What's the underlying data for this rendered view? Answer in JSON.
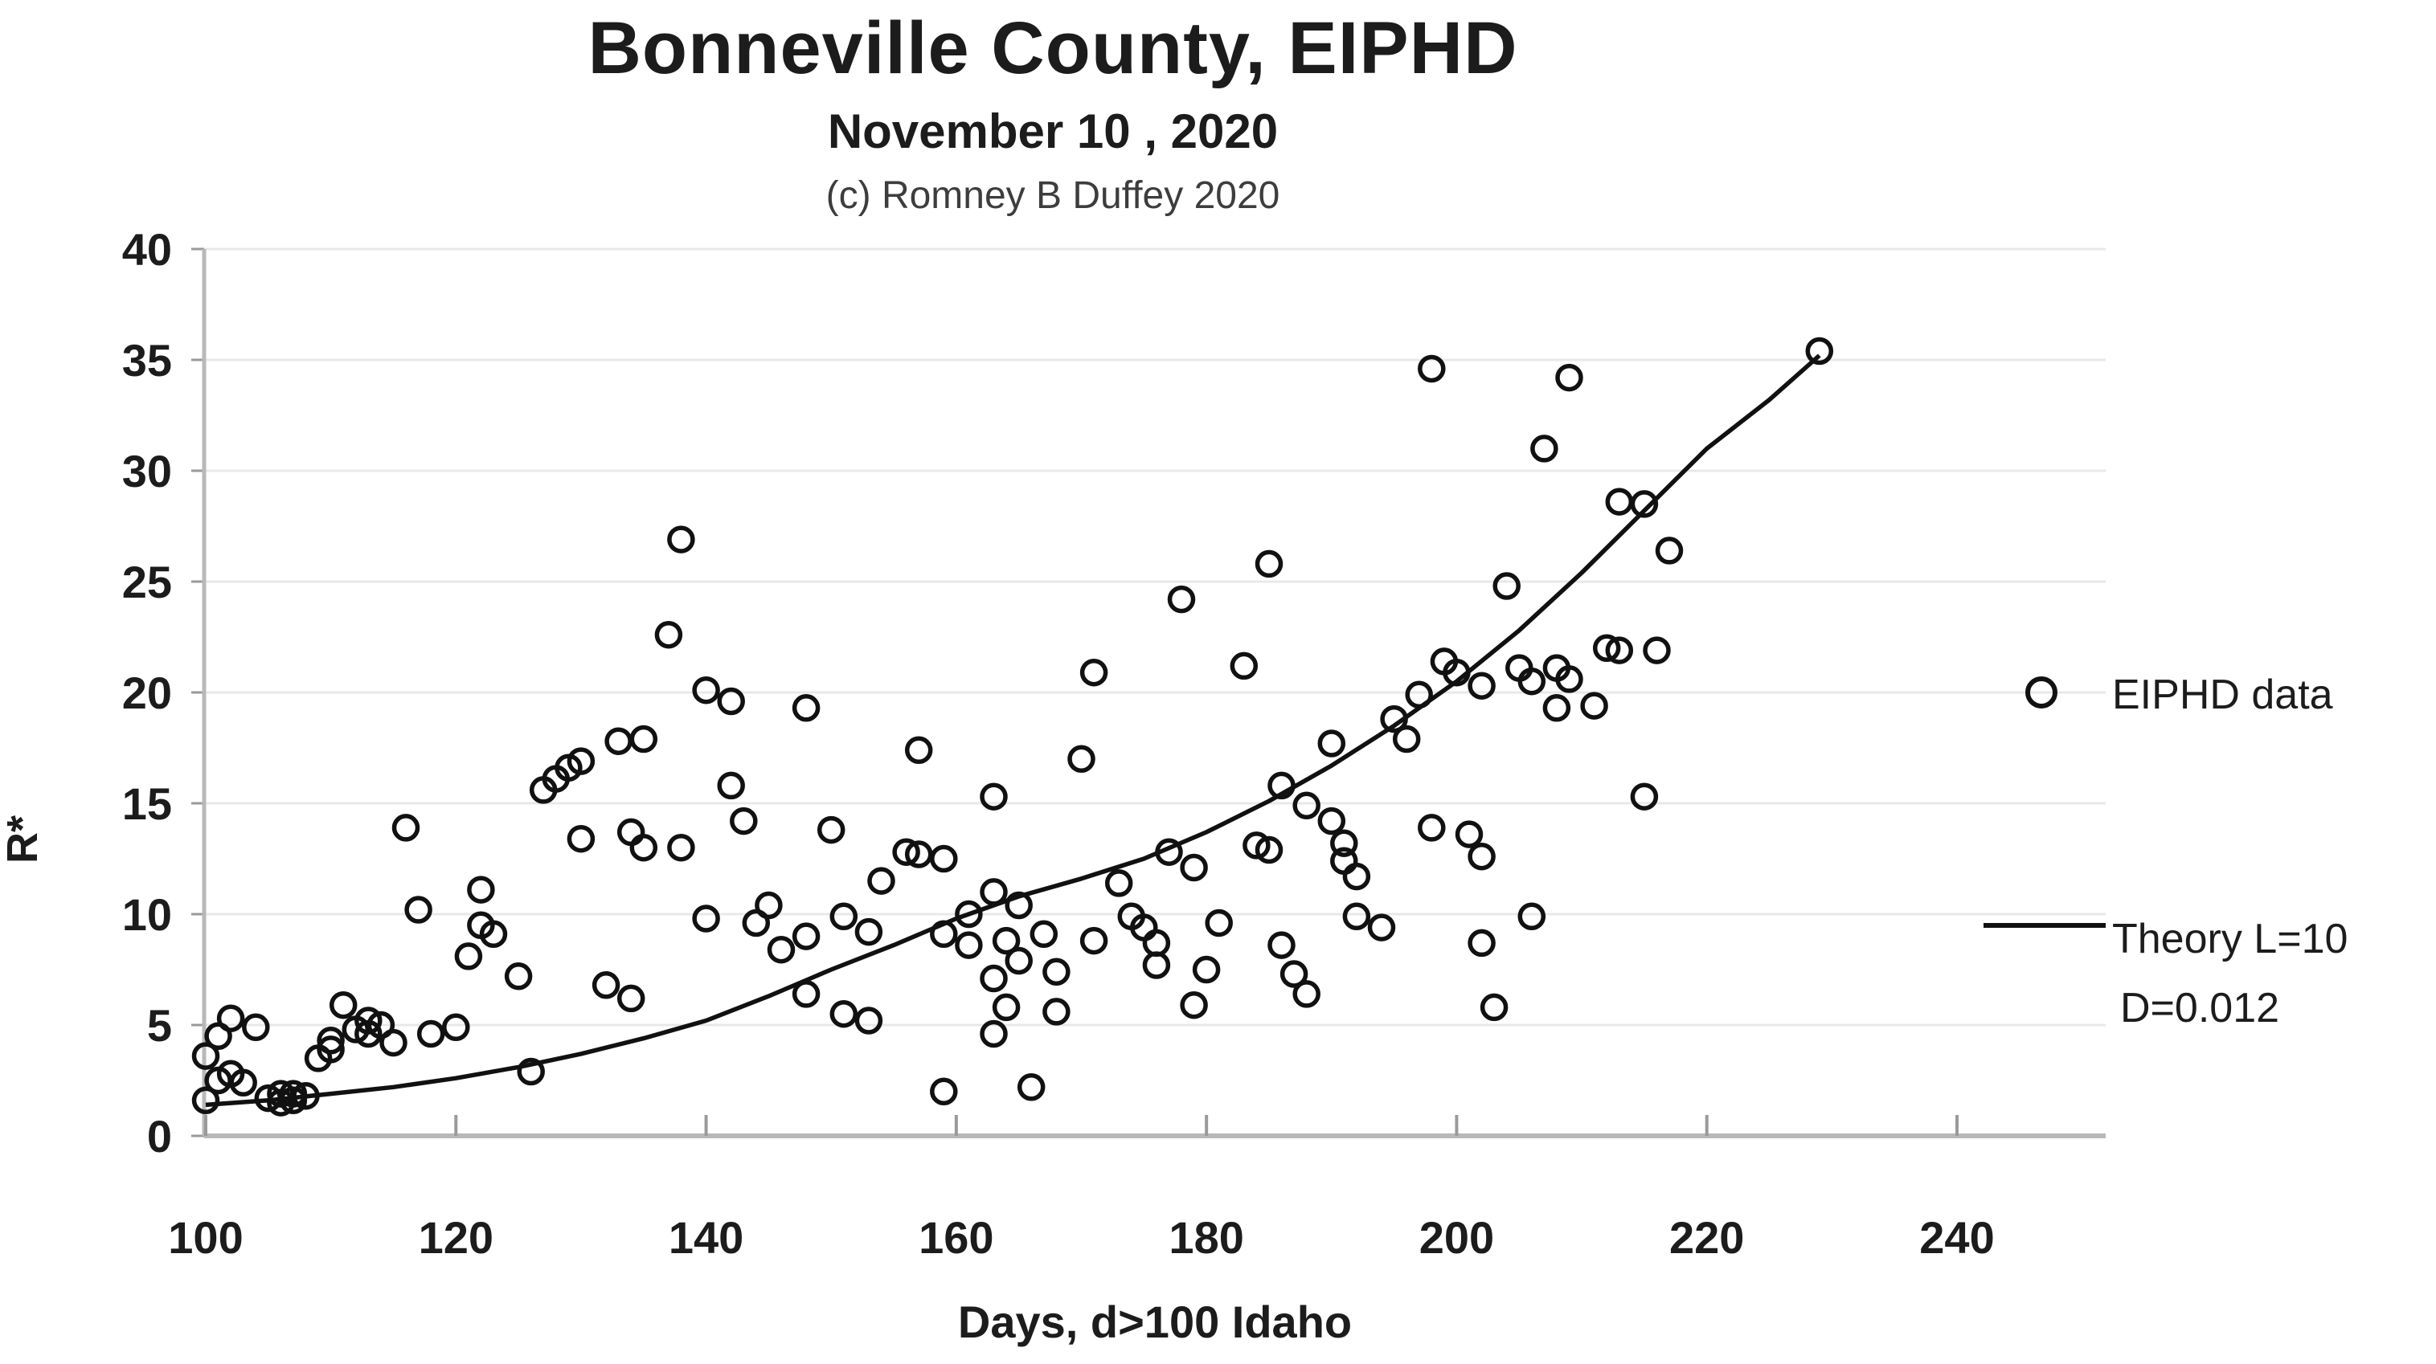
{
  "header": {
    "title": "Bonneville County, EIPHD",
    "subtitle": "November 10 , 2020",
    "copyright": "(c) Romney B Duffey 2020"
  },
  "legend": {
    "scatter_label": "EIPHD data",
    "line_label_line1": "Theory L=10",
    "line_label_line2": "D=0.012"
  },
  "colors": {
    "text": "#1c1c1c",
    "muted_text": "#3d3d3d",
    "gridline": "#e8e8e8",
    "axis": "#b8b8b8",
    "tick": "#9a9a9a",
    "marker": "#111111",
    "theory_line": "#111111"
  },
  "chart_data": {
    "type": "scatter",
    "title": "Bonneville County, EIPHD",
    "xlabel": "Days, d>100 Idaho",
    "ylabel": "R*",
    "xlim": [
      100,
      252
    ],
    "ylim": [
      0,
      40
    ],
    "xticks": [
      100,
      120,
      140,
      160,
      180,
      200,
      220,
      240
    ],
    "yticks": [
      0,
      5,
      10,
      15,
      20,
      25,
      30,
      35,
      40
    ],
    "grid": "horizontal",
    "legend_position": "right",
    "series": [
      {
        "name": "EIPHD data",
        "kind": "scatter",
        "marker": "open-circle",
        "points": [
          [
            100,
            1.6
          ],
          [
            100,
            3.6
          ],
          [
            101,
            2.5
          ],
          [
            101,
            4.5
          ],
          [
            102,
            5.3
          ],
          [
            102,
            2.8
          ],
          [
            103,
            2.4
          ],
          [
            104,
            4.9
          ],
          [
            105,
            1.7
          ],
          [
            106,
            1.5
          ],
          [
            106,
            1.9
          ],
          [
            107,
            1.6
          ],
          [
            107,
            1.9
          ],
          [
            108,
            1.8
          ],
          [
            109,
            3.5
          ],
          [
            110,
            3.9
          ],
          [
            110,
            4.3
          ],
          [
            111,
            5.9
          ],
          [
            112,
            4.8
          ],
          [
            113,
            4.6
          ],
          [
            113,
            5.2
          ],
          [
            114,
            5.0
          ],
          [
            115,
            4.2
          ],
          [
            116,
            13.9
          ],
          [
            117,
            10.2
          ],
          [
            118,
            4.6
          ],
          [
            120,
            4.9
          ],
          [
            121,
            8.1
          ],
          [
            122,
            9.5
          ],
          [
            122,
            11.1
          ],
          [
            123,
            9.1
          ],
          [
            125,
            7.2
          ],
          [
            126,
            2.9
          ],
          [
            127,
            15.6
          ],
          [
            128,
            16.1
          ],
          [
            129,
            16.6
          ],
          [
            130,
            16.9
          ],
          [
            133,
            17.8
          ],
          [
            135,
            17.9
          ],
          [
            130,
            13.4
          ],
          [
            132,
            6.8
          ],
          [
            134,
            6.2
          ],
          [
            134,
            13.7
          ],
          [
            135,
            13.0
          ],
          [
            137,
            22.6
          ],
          [
            138,
            26.9
          ],
          [
            138,
            13.0
          ],
          [
            140,
            20.1
          ],
          [
            142,
            19.6
          ],
          [
            142,
            15.8
          ],
          [
            143,
            14.2
          ],
          [
            140,
            9.8
          ],
          [
            144,
            9.6
          ],
          [
            145,
            10.4
          ],
          [
            146,
            8.4
          ],
          [
            148,
            9.0
          ],
          [
            148,
            6.4
          ],
          [
            148,
            19.3
          ],
          [
            150,
            13.8
          ],
          [
            151,
            9.9
          ],
          [
            153,
            9.2
          ],
          [
            151,
            5.5
          ],
          [
            153,
            5.2
          ],
          [
            154,
            11.5
          ],
          [
            156,
            12.8
          ],
          [
            157,
            12.7
          ],
          [
            159,
            12.5
          ],
          [
            157,
            17.4
          ],
          [
            159,
            9.1
          ],
          [
            161,
            10.0
          ],
          [
            161,
            8.6
          ],
          [
            159,
            2.0
          ],
          [
            163,
            4.6
          ],
          [
            164,
            5.8
          ],
          [
            166,
            2.2
          ],
          [
            163,
            7.1
          ],
          [
            163,
            11.0
          ],
          [
            165,
            10.4
          ],
          [
            164,
            8.8
          ],
          [
            167,
            9.1
          ],
          [
            165,
            7.9
          ],
          [
            168,
            7.4
          ],
          [
            168,
            5.6
          ],
          [
            163,
            15.3
          ],
          [
            170,
            17.0
          ],
          [
            171,
            20.9
          ],
          [
            171,
            8.8
          ],
          [
            173,
            11.4
          ],
          [
            174,
            9.9
          ],
          [
            175,
            9.4
          ],
          [
            176,
            8.7
          ],
          [
            176,
            7.7
          ],
          [
            177,
            12.8
          ],
          [
            179,
            12.1
          ],
          [
            179,
            5.9
          ],
          [
            180,
            7.5
          ],
          [
            181,
            9.6
          ],
          [
            178,
            24.2
          ],
          [
            183,
            21.2
          ],
          [
            185,
            25.8
          ],
          [
            184,
            13.1
          ],
          [
            185,
            12.9
          ],
          [
            186,
            15.8
          ],
          [
            186,
            8.6
          ],
          [
            187,
            7.3
          ],
          [
            188,
            6.4
          ],
          [
            188,
            14.9
          ],
          [
            190,
            17.7
          ],
          [
            190,
            14.2
          ],
          [
            191,
            13.2
          ],
          [
            191,
            12.4
          ],
          [
            192,
            11.7
          ],
          [
            192,
            9.9
          ],
          [
            194,
            9.4
          ],
          [
            195,
            18.8
          ],
          [
            196,
            17.9
          ],
          [
            197,
            19.9
          ],
          [
            198,
            13.9
          ],
          [
            201,
            13.6
          ],
          [
            202,
            12.6
          ],
          [
            202,
            8.7
          ],
          [
            203,
            5.8
          ],
          [
            206,
            9.9
          ],
          [
            198,
            34.6
          ],
          [
            199,
            21.4
          ],
          [
            200,
            20.9
          ],
          [
            202,
            20.3
          ],
          [
            205,
            21.1
          ],
          [
            206,
            20.5
          ],
          [
            208,
            21.1
          ],
          [
            209,
            20.6
          ],
          [
            208,
            19.3
          ],
          [
            211,
            19.4
          ],
          [
            212,
            22.0
          ],
          [
            213,
            21.9
          ],
          [
            216,
            21.9
          ],
          [
            204,
            24.8
          ],
          [
            207,
            31.0
          ],
          [
            209,
            34.2
          ],
          [
            213,
            28.6
          ],
          [
            215,
            28.5
          ],
          [
            217,
            26.4
          ],
          [
            215,
            15.3
          ],
          [
            229,
            35.4
          ]
        ]
      },
      {
        "name": "Theory L=10 D=0.012",
        "kind": "line",
        "points": [
          [
            100,
            1.4
          ],
          [
            105,
            1.6
          ],
          [
            110,
            1.9
          ],
          [
            115,
            2.2
          ],
          [
            120,
            2.6
          ],
          [
            125,
            3.1
          ],
          [
            130,
            3.7
          ],
          [
            135,
            4.4
          ],
          [
            140,
            5.2
          ],
          [
            145,
            6.3
          ],
          [
            150,
            7.5
          ],
          [
            155,
            8.6
          ],
          [
            160,
            9.8
          ],
          [
            165,
            10.8
          ],
          [
            170,
            11.6
          ],
          [
            175,
            12.5
          ],
          [
            180,
            13.7
          ],
          [
            185,
            15.1
          ],
          [
            190,
            16.7
          ],
          [
            195,
            18.5
          ],
          [
            200,
            20.5
          ],
          [
            205,
            22.8
          ],
          [
            210,
            25.4
          ],
          [
            215,
            28.2
          ],
          [
            220,
            31.0
          ],
          [
            225,
            33.2
          ],
          [
            229,
            35.2
          ]
        ]
      }
    ]
  }
}
